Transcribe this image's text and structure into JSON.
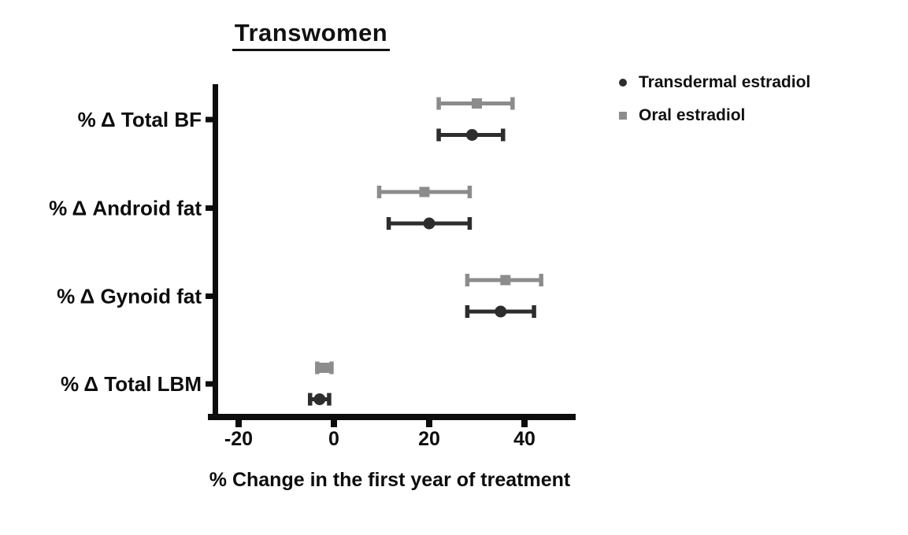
{
  "title": "Transwomen",
  "xlabel": "% Change in the first year of treatment",
  "colors": {
    "axis": "#0d0d0d",
    "transdermal": "#2d2d2d",
    "oral": "#8c8c8c"
  },
  "legend": {
    "position": "top-right",
    "items": [
      {
        "label": "Transdermal estradiol",
        "marker": "circle",
        "color": "#2d2d2d"
      },
      {
        "label": "Oral estradiol",
        "marker": "square",
        "color": "#8c8c8c"
      }
    ]
  },
  "chart_data": {
    "type": "scatter",
    "subtype": "horizontal-dot-plot-with-error-bars",
    "title": "Transwomen",
    "xlabel": "% Change in the first year of treatment",
    "categories": [
      "% Δ Total BF",
      "% Δ Android fat",
      "% Δ Gynoid fat",
      "% Δ Total LBM"
    ],
    "series": [
      {
        "name": "Oral estradiol",
        "marker": "square",
        "color": "#8c8c8c",
        "values": [
          30,
          19,
          36,
          -2
        ],
        "ci_low": [
          22,
          9.5,
          28,
          -3.5
        ],
        "ci_high": [
          37.5,
          28.5,
          43.5,
          -0.5
        ]
      },
      {
        "name": "Transdermal estradiol",
        "marker": "circle",
        "color": "#2d2d2d",
        "values": [
          29,
          20,
          35,
          -3
        ],
        "ci_low": [
          22,
          11.5,
          28,
          -5
        ],
        "ci_high": [
          35.5,
          28.5,
          42,
          -1
        ]
      }
    ],
    "xticks": [
      -20,
      0,
      20,
      40
    ],
    "xlim": [
      -25.5,
      50.5
    ],
    "grid": false,
    "legend_position": "top-right"
  }
}
